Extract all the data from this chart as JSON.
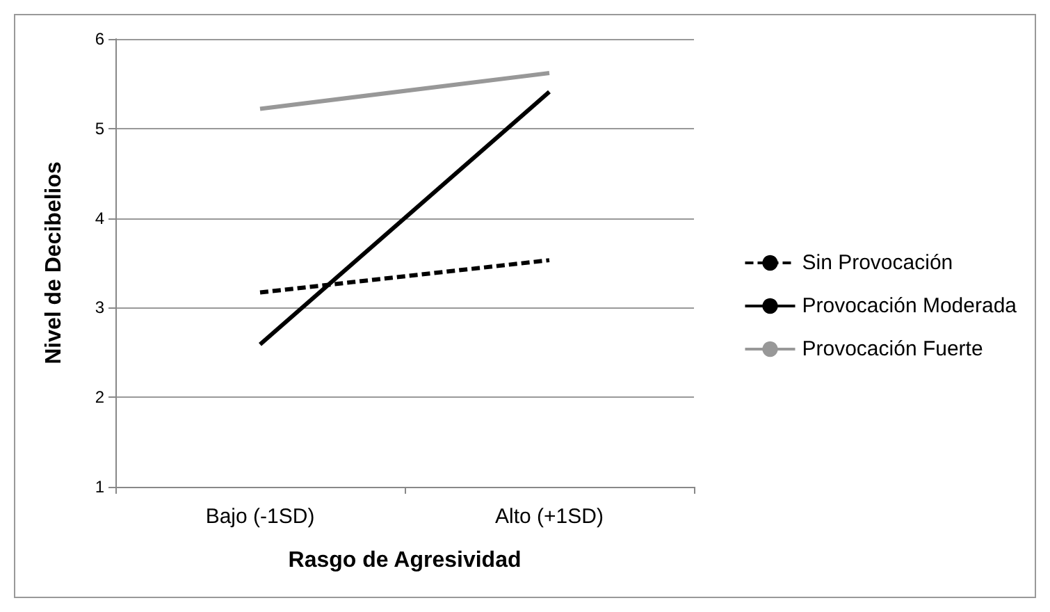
{
  "chart_data": {
    "type": "line",
    "xlabel": "Rasgo de Agresividad",
    "ylabel": "Nivel de Decibelios",
    "categories": [
      "Bajo (-1SD)",
      "Alto (+1SD)"
    ],
    "series": [
      {
        "name": "Sin Provocación",
        "color": "#000000",
        "line_style": "dashed",
        "values": [
          3.17,
          3.53
        ]
      },
      {
        "name": "Provocación Moderada",
        "color": "#000000",
        "line_style": "solid",
        "values": [
          2.59,
          5.41
        ]
      },
      {
        "name": "Provocación Fuerte",
        "color": "#989898",
        "line_style": "solid",
        "values": [
          5.22,
          5.62
        ]
      }
    ],
    "ylim": [
      1,
      6
    ],
    "yticks": [
      1,
      2,
      3,
      4,
      5,
      6
    ],
    "grid": "y",
    "legend": "right",
    "marker": "none"
  }
}
